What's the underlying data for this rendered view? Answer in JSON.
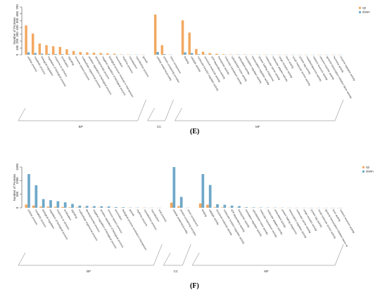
{
  "colors": {
    "up": "#f2a860",
    "down": "#6fa8c8",
    "axis": "#444444"
  },
  "panels": {
    "E": {
      "letter": "(E)"
    },
    "F": {
      "letter": "(F)"
    }
  },
  "chart_data": [
    {
      "type": "bar",
      "panel": "E",
      "ylabel": "Number of Proteins",
      "ylim": [
        0,
        700
      ],
      "yticks": [
        0,
        100,
        200,
        300,
        400,
        500,
        600,
        700
      ],
      "legend": {
        "placement": "top-right",
        "entries": [
          "up",
          "down"
        ]
      },
      "groups": [
        {
          "name": "BP",
          "count": 18
        },
        {
          "name": "CC",
          "count": 3
        },
        {
          "name": "MF",
          "count": 24
        }
      ],
      "categories": [
        "cellular process",
        "metabolic process",
        "biological regulation",
        "regulation of biological process",
        "response to stimulus",
        "localization",
        "signaling",
        "immune system process",
        "multicellular organismal process",
        "positive regulation of biological process",
        "developmental process",
        "negative regulation of biological process",
        "biological process involved in interspecies",
        "locomotion",
        "rhythmic process",
        "reproduction",
        "reproductive process",
        "growth",
        "cellular anatomical entity",
        "protein-containing complex",
        "virion component",
        "binding",
        "catalytic activity",
        "molecular function regulator activity",
        "structural molecule activity",
        "ATP-dependent activity",
        "transporter activity",
        "molecular transducer activity",
        "cytoskeletal motor activity",
        "antioxidant activity",
        "translation regulator activity",
        "transcription regulator activity",
        "protein folding chaperone",
        "molecular carrier activity",
        "molecular adaptor activity",
        "cargo receptor activity",
        "toxin activity",
        "small molecule sensor activity",
        "protein tag activity",
        "metallochaperone activity",
        "nutrient reservoir activity",
        "electron transfer activity",
        "general transcription initiation factor activity",
        "hormone activity",
        "enzyme regulator activity"
      ],
      "series": [
        {
          "name": "up",
          "values": [
            430,
            310,
            165,
            140,
            125,
            115,
            80,
            55,
            40,
            35,
            30,
            25,
            20,
            15,
            5,
            4,
            3,
            3,
            590,
            140,
            3,
            505,
            325,
            85,
            45,
            25,
            15,
            8,
            5,
            5,
            4,
            3,
            3,
            2,
            2,
            1,
            1,
            1,
            1,
            1,
            1,
            1,
            1,
            1,
            1
          ]
        },
        {
          "name": "down",
          "values": [
            35,
            25,
            15,
            12,
            10,
            8,
            6,
            4,
            3,
            3,
            2,
            2,
            2,
            1,
            1,
            1,
            1,
            1,
            40,
            10,
            1,
            35,
            25,
            8,
            5,
            3,
            2,
            1,
            1,
            1,
            1,
            1,
            1,
            1,
            1,
            1,
            1,
            1,
            1,
            1,
            1,
            1,
            1,
            1,
            1
          ]
        }
      ]
    },
    {
      "type": "bar",
      "panel": "F",
      "ylabel": "Number of Proteins",
      "ylim": [
        0,
        1500
      ],
      "yticks": [
        0,
        500,
        1000,
        1500
      ],
      "legend": {
        "placement": "top-right",
        "entries": [
          "up",
          "down"
        ]
      },
      "groups": [
        {
          "name": "BP",
          "count": 19
        },
        {
          "name": "CC",
          "count": 3
        },
        {
          "name": "MF",
          "count": 20
        }
      ],
      "categories": [
        "cellular process",
        "metabolic process",
        "biological regulation",
        "regulation of biological process",
        "response to stimulus",
        "localization",
        "signaling",
        "multicellular organismal process",
        "developmental process",
        "negative regulation of biological process",
        "positive regulation of biological process",
        "immune system process",
        "locomotion",
        "biological process involved in interspecies",
        "growth",
        "rhythmic process",
        "reproductive process",
        "reproduction",
        "viral process",
        "cellular anatomical entity",
        "protein-containing complex",
        "virion component",
        "binding",
        "catalytic activity",
        "structural molecule activity",
        "molecular function regulator activity",
        "ATP-dependent activity",
        "transporter activity",
        "translation regulator activity",
        "cytoskeletal motor activity",
        "molecular transducer activity",
        "molecular adaptor activity",
        "antioxidant activity",
        "protein folding chaperone",
        "transcription regulator activity",
        "molecular carrier activity",
        "cargo receptor activity",
        "protein tag activity",
        "small molecule sensor activity",
        "general transcription initiation factor ac",
        "toxin activity",
        "nutrient reservoir activity"
      ],
      "series": [
        {
          "name": "up",
          "values": [
            120,
            80,
            45,
            40,
            35,
            30,
            20,
            15,
            12,
            10,
            9,
            8,
            5,
            4,
            3,
            3,
            2,
            2,
            1,
            190,
            60,
            1,
            160,
            110,
            20,
            15,
            10,
            6,
            5,
            4,
            3,
            2,
            2,
            2,
            1,
            1,
            1,
            1,
            1,
            1,
            1,
            1
          ]
        },
        {
          "name": "down",
          "values": [
            1240,
            830,
            320,
            280,
            240,
            200,
            140,
            80,
            70,
            60,
            55,
            50,
            25,
            20,
            10,
            8,
            6,
            5,
            2,
            1500,
            400,
            5,
            1240,
            840,
            130,
            110,
            80,
            60,
            20,
            15,
            12,
            10,
            8,
            6,
            5,
            4,
            3,
            2,
            2,
            2,
            1,
            1
          ]
        }
      ]
    }
  ]
}
